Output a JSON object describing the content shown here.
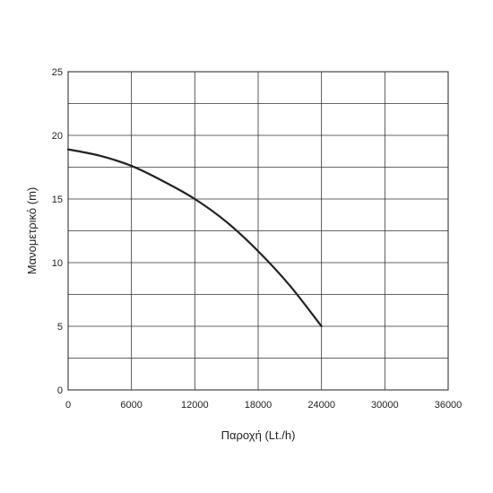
{
  "chart_data": {
    "type": "line",
    "title": "",
    "xlabel": "Παροχή (Lt./h)",
    "ylabel": "Μανομετρικό  (m)",
    "xlim": [
      0,
      36000
    ],
    "ylim": [
      0,
      25
    ],
    "xticks": [
      0,
      6000,
      12000,
      18000,
      24000,
      30000,
      36000
    ],
    "xtick_labels": [
      "0",
      "6000",
      "12000",
      "18000",
      "24000",
      "30000",
      "36000"
    ],
    "yticks": [
      0,
      5,
      10,
      15,
      20,
      25
    ],
    "ytick_labels": [
      "0",
      "5",
      "10",
      "15",
      "20",
      "25"
    ],
    "x_minor_grid_step": 6000,
    "y_grid_step": 2.5,
    "grid": true,
    "legend": "none",
    "series": [
      {
        "color": "#222222",
        "x": [
          0,
          3000,
          6000,
          9000,
          12000,
          15000,
          18000,
          21000,
          24000
        ],
        "y": [
          18.9,
          18.4,
          17.6,
          16.4,
          15.0,
          13.2,
          10.9,
          8.2,
          5.0
        ]
      }
    ]
  }
}
